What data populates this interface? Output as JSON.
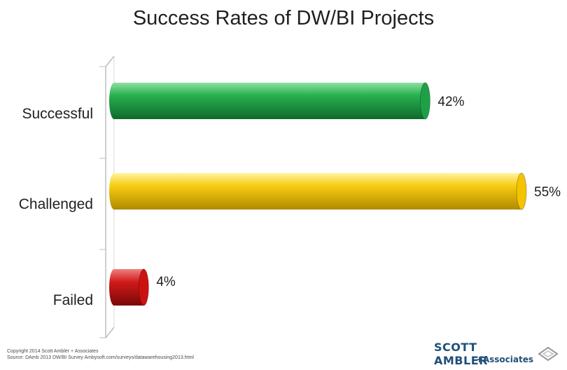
{
  "chart_data": {
    "type": "bar",
    "orientation": "horizontal",
    "title": "Success Rates of DW/BI Projects",
    "categories": [
      "Successful",
      "Challenged",
      "Failed"
    ],
    "values": [
      42,
      55,
      4
    ],
    "value_labels": [
      "42%",
      "55%",
      "4%"
    ],
    "xlim": [
      0,
      55
    ],
    "grid": false,
    "legend": "none"
  },
  "colors": {
    "successful": "#1fa047",
    "challenged": "#f5c400",
    "failed": "#cc1111"
  },
  "footer": {
    "copyright": "Copyright 2014 Scott Ambler + Associates",
    "source": "Source: DAmb 2013 DW/BI Survey   Ambysoft.com/surveys/datawarehousing2013.html"
  },
  "logo": {
    "name": "SCOTT AMBLER",
    "associates": "Associates",
    "plus": "+"
  }
}
